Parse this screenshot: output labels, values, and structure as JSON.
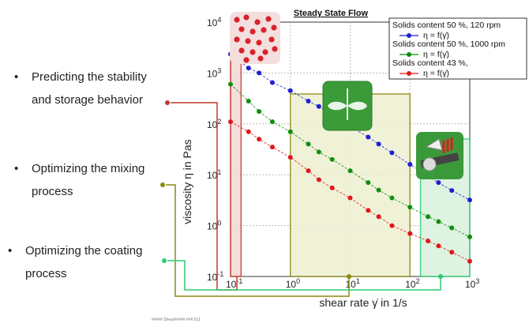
{
  "bullets": [
    {
      "lines": [
        "Predicting the stability",
        "and storage behavior"
      ],
      "color": "#c0392b"
    },
    {
      "lines": [
        "Optimizing the mixing",
        "process"
      ],
      "color": "#8a8a10"
    },
    {
      "lines": [
        "Optimizing the coating",
        "process"
      ],
      "color": "#2ecc71"
    }
  ],
  "footer_note": "##### Shear##### ###.011",
  "chart_data": {
    "type": "line",
    "title": "Steady State Flow",
    "xlabel": "shear rate γ̇ in 1/s",
    "ylabel": "viscosity η in Pas",
    "xscale": "log",
    "yscale": "log",
    "xlim": [
      0.1,
      1000
    ],
    "ylim": [
      0.1,
      10000
    ],
    "xticks": [
      {
        "base": "10",
        "exp": "-1"
      },
      {
        "base": "10",
        "exp": "0"
      },
      {
        "base": "10",
        "exp": "1"
      },
      {
        "base": "10",
        "exp": "2"
      },
      {
        "base": "10",
        "exp": "3"
      }
    ],
    "yticks": [
      {
        "base": "10",
        "exp": "-1"
      },
      {
        "base": "10",
        "exp": "0"
      },
      {
        "base": "10",
        "exp": "1"
      },
      {
        "base": "10",
        "exp": "2"
      },
      {
        "base": "10",
        "exp": "3"
      },
      {
        "base": "10",
        "exp": "4"
      }
    ],
    "grid": true,
    "legend_position": "top-right",
    "series": [
      {
        "name": "Solids content 50 %, 120 rpm",
        "legend_sub": "η = f(γ̇)",
        "color": "#1f1fd6",
        "x": [
          0.1,
          0.2,
          0.3,
          0.5,
          1,
          2,
          3,
          5,
          10,
          20,
          30,
          50,
          100,
          200,
          300,
          500,
          1000
        ],
        "y": [
          2350,
          1250,
          1000,
          650,
          450,
          280,
          220,
          145,
          90,
          55,
          40,
          27,
          16,
          9.5,
          7,
          4.9,
          3.2
        ]
      },
      {
        "name": "Solids content 50 %, 1000 rpm",
        "legend_sub": "η = f(γ̇)",
        "color": "#0f8f0f",
        "x": [
          0.1,
          0.2,
          0.3,
          0.5,
          1,
          2,
          3,
          5,
          10,
          20,
          30,
          50,
          100,
          200,
          300,
          500,
          1000
        ],
        "y": [
          600,
          280,
          175,
          110,
          70,
          40,
          28,
          20,
          12,
          7,
          5,
          3.5,
          2.3,
          1.5,
          1.2,
          0.9,
          0.6
        ]
      },
      {
        "name": "Solids content 43 %,",
        "legend_sub": "η = f(γ̇)",
        "color": "#e01818",
        "x": [
          0.1,
          0.2,
          0.3,
          0.5,
          1,
          2,
          3,
          5,
          10,
          20,
          30,
          50,
          100,
          200,
          300,
          500,
          1000
        ],
        "y": [
          110,
          70,
          50,
          35,
          22,
          12,
          8,
          5.5,
          3.5,
          2,
          1.5,
          1.0,
          0.7,
          0.5,
          0.4,
          0.3,
          0.2
        ]
      }
    ],
    "regions": [
      {
        "name": "stability",
        "x": [
          0.1,
          0.15
        ],
        "color": "#c0392b",
        "fill": "#f6d6d6",
        "icon": "particles-icon"
      },
      {
        "name": "mixing",
        "x": [
          1,
          100
        ],
        "color": "#8a8a10",
        "fill": "#eef0d2",
        "icon": "mixer-icon"
      },
      {
        "name": "coating",
        "x": [
          150,
          1000
        ],
        "color": "#2ecc71",
        "fill": "#d9f2dc",
        "icon": "coating-icon"
      }
    ]
  }
}
